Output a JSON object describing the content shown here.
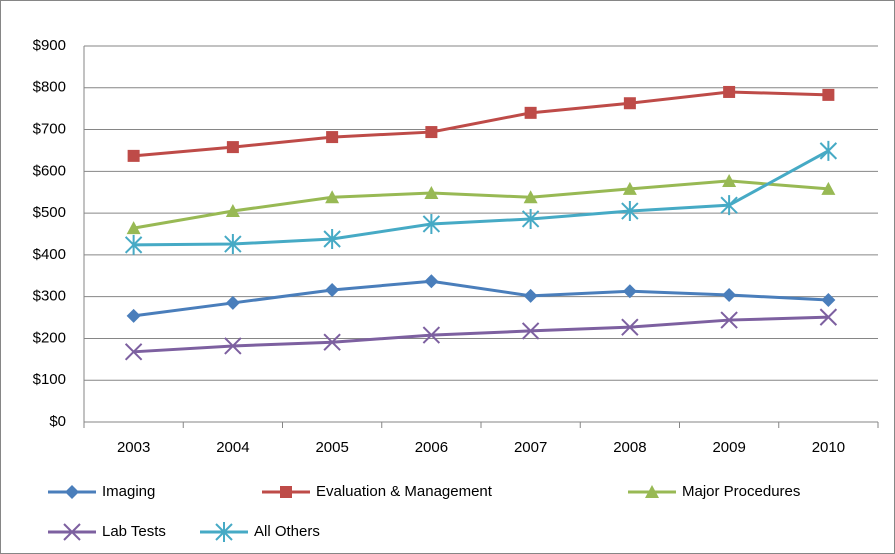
{
  "chart_data": {
    "type": "line",
    "categories": [
      "2003",
      "2004",
      "2005",
      "2006",
      "2007",
      "2008",
      "2009",
      "2010"
    ],
    "series": [
      {
        "name": "Imaging",
        "color": "#4a7ebb",
        "marker": "diamond",
        "values": [
          254,
          285,
          316,
          337,
          302,
          313,
          304,
          292
        ]
      },
      {
        "name": "Evaluation & Management",
        "color": "#be4b48",
        "marker": "square",
        "values": [
          637,
          658,
          682,
          694,
          740,
          763,
          790,
          783
        ]
      },
      {
        "name": "Major Procedures",
        "color": "#98b954",
        "marker": "triangle",
        "values": [
          464,
          505,
          538,
          548,
          538,
          558,
          577,
          558
        ]
      },
      {
        "name": "Lab Tests",
        "color": "#7d60a0",
        "marker": "x",
        "values": [
          168,
          182,
          191,
          208,
          218,
          227,
          244,
          251
        ]
      },
      {
        "name": "All Others",
        "color": "#46aac5",
        "marker": "star",
        "values": [
          424,
          426,
          438,
          474,
          486,
          505,
          519,
          649
        ]
      }
    ],
    "ylim": [
      0,
      900
    ],
    "yticks": [
      {
        "value": 0,
        "label": "$0"
      },
      {
        "value": 100,
        "label": "$100"
      },
      {
        "value": 200,
        "label": "$200"
      },
      {
        "value": 300,
        "label": "$300"
      },
      {
        "value": 400,
        "label": "$400"
      },
      {
        "value": 500,
        "label": "$500"
      },
      {
        "value": 600,
        "label": "$600"
      },
      {
        "value": 700,
        "label": "$700"
      },
      {
        "value": 800,
        "label": "$800"
      },
      {
        "value": 900,
        "label": "$900"
      }
    ],
    "grid": true,
    "legend": "bottom"
  }
}
